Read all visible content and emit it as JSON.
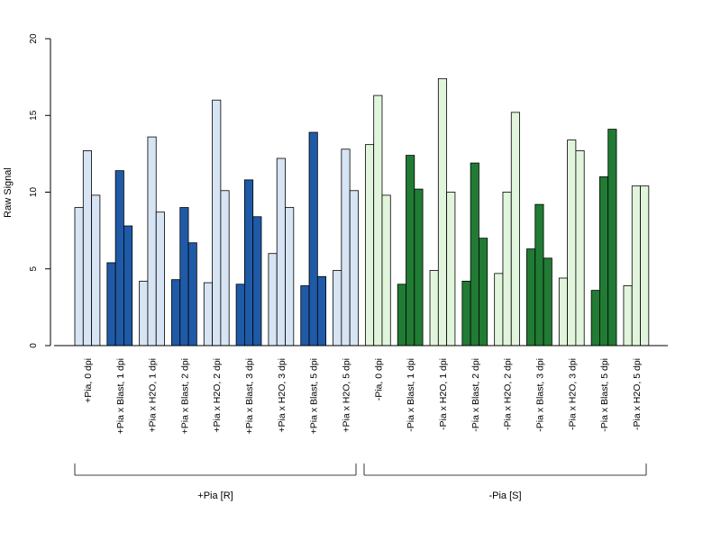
{
  "chart_data": {
    "type": "bar",
    "ylabel": "Raw Signal",
    "ylim": [
      0,
      20
    ],
    "yticks": [
      0,
      5,
      10,
      15,
      20
    ],
    "grid": false,
    "colors": {
      "light_blue": "#d6e4f4",
      "dark_blue": "#1f5aa7",
      "light_green": "#e1f4dc",
      "dark_green": "#217b34"
    },
    "categories": [
      "+Pia, 0 dpi",
      "+Pia x Blast, 1 dpi",
      "+Pia x H2O, 1 dpi",
      "+Pia x Blast, 2 dpi",
      "+Pia x H2O, 2 dpi",
      "+Pia x Blast, 3 dpi",
      "+Pia x H2O, 3 dpi",
      "+Pia x Blast, 5 dpi",
      "+Pia x H2O, 5 dpi",
      "-Pia, 0 dpi",
      "-Pia x Blast, 1 dpi",
      "-Pia x H2O, 1 dpi",
      "-Pia x Blast, 2 dpi",
      "-Pia x H2O, 2 dpi",
      "-Pia x Blast, 3 dpi",
      "-Pia x H2O, 3 dpi",
      "-Pia x Blast, 5 dpi",
      "-Pia x H2O, 5 dpi"
    ],
    "group_colors": [
      "light_blue",
      "dark_blue",
      "light_blue",
      "dark_blue",
      "light_blue",
      "dark_blue",
      "light_blue",
      "dark_blue",
      "light_blue",
      "light_green",
      "dark_green",
      "light_green",
      "dark_green",
      "light_green",
      "dark_green",
      "light_green",
      "dark_green",
      "light_green"
    ],
    "values": [
      [
        9.0,
        12.7,
        9.8
      ],
      [
        5.4,
        11.4,
        7.8
      ],
      [
        4.2,
        13.6,
        8.7
      ],
      [
        4.3,
        9.0,
        6.7
      ],
      [
        4.1,
        16.0,
        10.1
      ],
      [
        4.0,
        10.8,
        8.4
      ],
      [
        6.0,
        12.2,
        9.0
      ],
      [
        3.9,
        13.9,
        4.5
      ],
      [
        4.9,
        12.8,
        10.1
      ],
      [
        13.1,
        16.3,
        9.8
      ],
      [
        4.0,
        12.4,
        10.2
      ],
      [
        4.9,
        17.4,
        10.0
      ],
      [
        4.2,
        11.9,
        7.0
      ],
      [
        4.7,
        10.0,
        15.2
      ],
      [
        6.3,
        9.2,
        5.7
      ],
      [
        4.4,
        13.4,
        12.7
      ],
      [
        3.6,
        11.0,
        14.1
      ],
      [
        3.9,
        10.4,
        10.4
      ]
    ],
    "groups": [
      {
        "label": "+Pia [R]",
        "from": 0,
        "to": 8
      },
      {
        "label": "-Pia [S]",
        "from": 9,
        "to": 17
      }
    ]
  }
}
